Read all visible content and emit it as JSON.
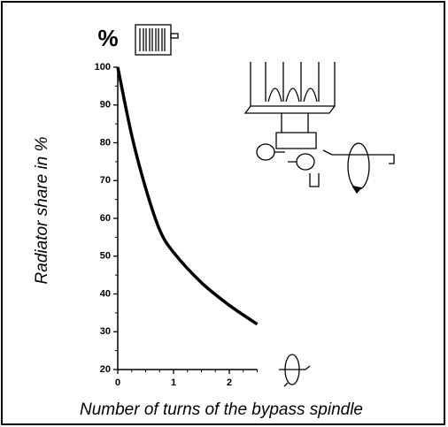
{
  "chart_data": {
    "type": "line",
    "y_unit_label": "%",
    "y_label": "Radiator share in %",
    "x_label": "Number of turns of the bypass spindle",
    "x": [
      0,
      0.25,
      0.5,
      0.75,
      1,
      1.5,
      2,
      2.5
    ],
    "values": [
      100,
      82,
      68,
      57,
      51,
      43,
      37,
      32
    ],
    "color": "#000000",
    "xlim": [
      0,
      2.5
    ],
    "ylim": [
      20,
      100
    ],
    "xticks": [
      0,
      1,
      2
    ],
    "yticks": [
      20,
      30,
      40,
      50,
      60,
      70,
      80,
      90,
      100
    ],
    "xticks_minor": [
      0.25,
      0.5,
      0.75,
      1.25,
      1.5,
      1.75,
      2.25,
      2.5
    ],
    "yticks_minor": [
      25,
      35,
      45,
      55,
      65,
      75,
      85,
      95
    ]
  }
}
